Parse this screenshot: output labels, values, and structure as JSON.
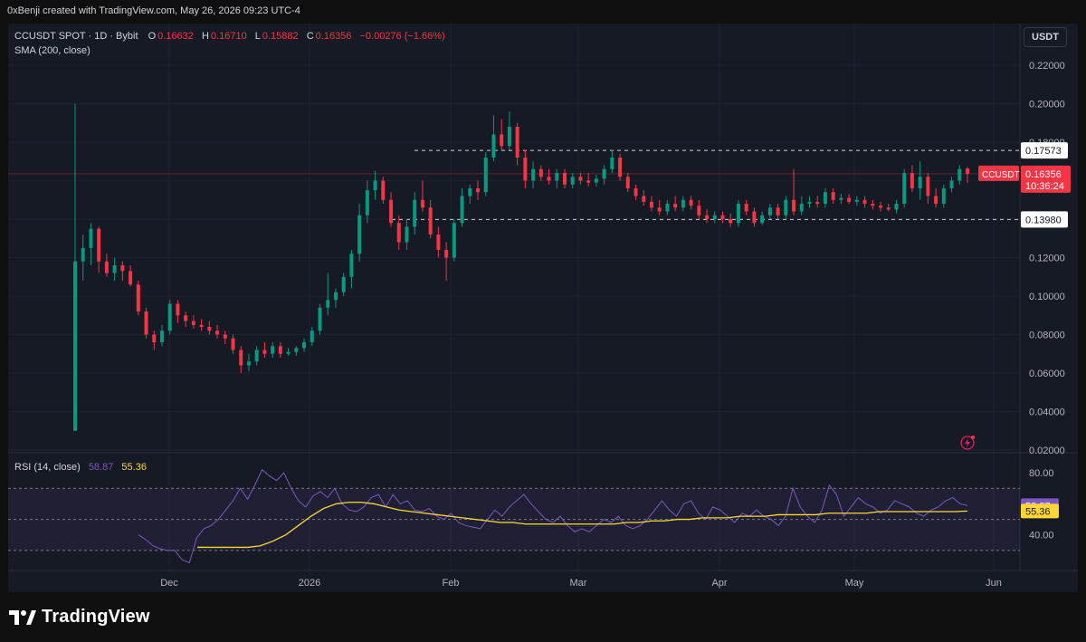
{
  "header": {
    "credit": "0xBenji created with TradingView.com, May 26, 2026 09:23 UTC-4"
  },
  "legend": {
    "symbol": "CCUSDT SPOT · 1D · Bybit",
    "o_label": "O",
    "o": "0.16632",
    "h_label": "H",
    "h": "0.16710",
    "l_label": "L",
    "l": "0.15882",
    "c_label": "C",
    "c": "0.16356",
    "change": "−0.00276 (−1.66%)",
    "sma": "SMA (200, close)"
  },
  "currency_button": "USDT",
  "price_axis": {
    "ticks": [
      "0.22000",
      "0.20000",
      "0.18000",
      "0.16000",
      "0.14000",
      "0.12000",
      "0.10000",
      "0.08000",
      "0.06000",
      "0.04000",
      "0.02000"
    ]
  },
  "levels": {
    "resistance": "0.17573",
    "support": "0.13980"
  },
  "last_price": {
    "symbol": "CCUSDT",
    "price": "0.16356",
    "countdown": "10:36:24"
  },
  "rsi": {
    "label": "RSI (14, close)",
    "value": "58.87",
    "ma_value": "55.36",
    "ticks": [
      "80.00",
      "40.00"
    ]
  },
  "time_axis": [
    "Dec",
    "2026",
    "Feb",
    "Mar",
    "Apr",
    "May",
    "Jun"
  ],
  "footer": {
    "brand": "TradingView"
  },
  "colors": {
    "up": "#089981",
    "down": "#f23645",
    "rsi": "#7e57c2",
    "rsi_ma": "#fdd835",
    "bg": "#161a25"
  },
  "chart_data": {
    "type": "candlestick",
    "title": "CCUSDT SPOT · 1D · Bybit",
    "ylim": [
      0.02,
      0.22
    ],
    "x_labels": [
      "Dec",
      "2026",
      "Feb",
      "Mar",
      "Apr",
      "May",
      "Jun"
    ],
    "ohlc": [
      {
        "o": 0.03,
        "h": 0.2,
        "l": 0.03,
        "c": 0.118
      },
      {
        "o": 0.118,
        "h": 0.132,
        "l": 0.108,
        "c": 0.125
      },
      {
        "o": 0.125,
        "h": 0.138,
        "l": 0.116,
        "c": 0.135
      },
      {
        "o": 0.135,
        "h": 0.136,
        "l": 0.112,
        "c": 0.118
      },
      {
        "o": 0.118,
        "h": 0.122,
        "l": 0.11,
        "c": 0.112
      },
      {
        "o": 0.112,
        "h": 0.12,
        "l": 0.108,
        "c": 0.116
      },
      {
        "o": 0.116,
        "h": 0.118,
        "l": 0.108,
        "c": 0.113
      },
      {
        "o": 0.113,
        "h": 0.116,
        "l": 0.105,
        "c": 0.106
      },
      {
        "o": 0.106,
        "h": 0.108,
        "l": 0.09,
        "c": 0.092
      },
      {
        "o": 0.092,
        "h": 0.094,
        "l": 0.078,
        "c": 0.08
      },
      {
        "o": 0.08,
        "h": 0.082,
        "l": 0.072,
        "c": 0.076
      },
      {
        "o": 0.076,
        "h": 0.085,
        "l": 0.074,
        "c": 0.082
      },
      {
        "o": 0.082,
        "h": 0.098,
        "l": 0.08,
        "c": 0.096
      },
      {
        "o": 0.096,
        "h": 0.098,
        "l": 0.086,
        "c": 0.09
      },
      {
        "o": 0.09,
        "h": 0.092,
        "l": 0.084,
        "c": 0.087
      },
      {
        "o": 0.087,
        "h": 0.09,
        "l": 0.083,
        "c": 0.085
      },
      {
        "o": 0.085,
        "h": 0.088,
        "l": 0.082,
        "c": 0.084
      },
      {
        "o": 0.084,
        "h": 0.087,
        "l": 0.08,
        "c": 0.082
      },
      {
        "o": 0.082,
        "h": 0.085,
        "l": 0.078,
        "c": 0.08
      },
      {
        "o": 0.08,
        "h": 0.082,
        "l": 0.075,
        "c": 0.078
      },
      {
        "o": 0.078,
        "h": 0.08,
        "l": 0.07,
        "c": 0.072
      },
      {
        "o": 0.072,
        "h": 0.074,
        "l": 0.06,
        "c": 0.064
      },
      {
        "o": 0.064,
        "h": 0.07,
        "l": 0.061,
        "c": 0.066
      },
      {
        "o": 0.066,
        "h": 0.074,
        "l": 0.064,
        "c": 0.072
      },
      {
        "o": 0.072,
        "h": 0.076,
        "l": 0.068,
        "c": 0.07
      },
      {
        "o": 0.07,
        "h": 0.076,
        "l": 0.068,
        "c": 0.074
      },
      {
        "o": 0.074,
        "h": 0.076,
        "l": 0.068,
        "c": 0.07
      },
      {
        "o": 0.07,
        "h": 0.073,
        "l": 0.069,
        "c": 0.071
      },
      {
        "o": 0.071,
        "h": 0.074,
        "l": 0.069,
        "c": 0.073
      },
      {
        "o": 0.073,
        "h": 0.078,
        "l": 0.071,
        "c": 0.076
      },
      {
        "o": 0.076,
        "h": 0.084,
        "l": 0.074,
        "c": 0.082
      },
      {
        "o": 0.082,
        "h": 0.096,
        "l": 0.08,
        "c": 0.094
      },
      {
        "o": 0.094,
        "h": 0.112,
        "l": 0.09,
        "c": 0.098
      },
      {
        "o": 0.098,
        "h": 0.104,
        "l": 0.094,
        "c": 0.102
      },
      {
        "o": 0.102,
        "h": 0.112,
        "l": 0.1,
        "c": 0.11
      },
      {
        "o": 0.11,
        "h": 0.124,
        "l": 0.104,
        "c": 0.122
      },
      {
        "o": 0.122,
        "h": 0.148,
        "l": 0.118,
        "c": 0.142
      },
      {
        "o": 0.142,
        "h": 0.16,
        "l": 0.138,
        "c": 0.155
      },
      {
        "o": 0.155,
        "h": 0.165,
        "l": 0.15,
        "c": 0.16
      },
      {
        "o": 0.16,
        "h": 0.162,
        "l": 0.148,
        "c": 0.15
      },
      {
        "o": 0.15,
        "h": 0.154,
        "l": 0.136,
        "c": 0.138
      },
      {
        "o": 0.138,
        "h": 0.142,
        "l": 0.124,
        "c": 0.128
      },
      {
        "o": 0.128,
        "h": 0.14,
        "l": 0.124,
        "c": 0.136
      },
      {
        "o": 0.136,
        "h": 0.154,
        "l": 0.132,
        "c": 0.15
      },
      {
        "o": 0.15,
        "h": 0.16,
        "l": 0.144,
        "c": 0.146
      },
      {
        "o": 0.146,
        "h": 0.15,
        "l": 0.13,
        "c": 0.132
      },
      {
        "o": 0.132,
        "h": 0.136,
        "l": 0.12,
        "c": 0.124
      },
      {
        "o": 0.124,
        "h": 0.128,
        "l": 0.108,
        "c": 0.12
      },
      {
        "o": 0.12,
        "h": 0.14,
        "l": 0.118,
        "c": 0.138
      },
      {
        "o": 0.138,
        "h": 0.156,
        "l": 0.136,
        "c": 0.152
      },
      {
        "o": 0.152,
        "h": 0.158,
        "l": 0.148,
        "c": 0.156
      },
      {
        "o": 0.156,
        "h": 0.16,
        "l": 0.15,
        "c": 0.154
      },
      {
        "o": 0.154,
        "h": 0.175,
        "l": 0.152,
        "c": 0.172
      },
      {
        "o": 0.172,
        "h": 0.194,
        "l": 0.17,
        "c": 0.184
      },
      {
        "o": 0.184,
        "h": 0.192,
        "l": 0.176,
        "c": 0.178
      },
      {
        "o": 0.178,
        "h": 0.196,
        "l": 0.176,
        "c": 0.188
      },
      {
        "o": 0.188,
        "h": 0.19,
        "l": 0.168,
        "c": 0.172
      },
      {
        "o": 0.172,
        "h": 0.176,
        "l": 0.156,
        "c": 0.16
      },
      {
        "o": 0.16,
        "h": 0.17,
        "l": 0.156,
        "c": 0.166
      },
      {
        "o": 0.166,
        "h": 0.168,
        "l": 0.16,
        "c": 0.162
      },
      {
        "o": 0.162,
        "h": 0.166,
        "l": 0.158,
        "c": 0.16
      },
      {
        "o": 0.16,
        "h": 0.166,
        "l": 0.156,
        "c": 0.164
      },
      {
        "o": 0.164,
        "h": 0.166,
        "l": 0.156,
        "c": 0.158
      },
      {
        "o": 0.158,
        "h": 0.164,
        "l": 0.156,
        "c": 0.162
      },
      {
        "o": 0.162,
        "h": 0.164,
        "l": 0.158,
        "c": 0.16
      },
      {
        "o": 0.16,
        "h": 0.164,
        "l": 0.157,
        "c": 0.159
      },
      {
        "o": 0.159,
        "h": 0.163,
        "l": 0.157,
        "c": 0.161
      },
      {
        "o": 0.161,
        "h": 0.168,
        "l": 0.158,
        "c": 0.166
      },
      {
        "o": 0.166,
        "h": 0.176,
        "l": 0.164,
        "c": 0.172
      },
      {
        "o": 0.172,
        "h": 0.174,
        "l": 0.16,
        "c": 0.162
      },
      {
        "o": 0.162,
        "h": 0.164,
        "l": 0.154,
        "c": 0.156
      },
      {
        "o": 0.156,
        "h": 0.158,
        "l": 0.15,
        "c": 0.152
      },
      {
        "o": 0.152,
        "h": 0.155,
        "l": 0.147,
        "c": 0.149
      },
      {
        "o": 0.149,
        "h": 0.152,
        "l": 0.144,
        "c": 0.146
      },
      {
        "o": 0.146,
        "h": 0.15,
        "l": 0.142,
        "c": 0.144
      },
      {
        "o": 0.144,
        "h": 0.15,
        "l": 0.142,
        "c": 0.148
      },
      {
        "o": 0.148,
        "h": 0.152,
        "l": 0.144,
        "c": 0.146
      },
      {
        "o": 0.146,
        "h": 0.152,
        "l": 0.144,
        "c": 0.15
      },
      {
        "o": 0.15,
        "h": 0.152,
        "l": 0.145,
        "c": 0.147
      },
      {
        "o": 0.147,
        "h": 0.15,
        "l": 0.14,
        "c": 0.142
      },
      {
        "o": 0.142,
        "h": 0.145,
        "l": 0.138,
        "c": 0.14
      },
      {
        "o": 0.14,
        "h": 0.144,
        "l": 0.138,
        "c": 0.142
      },
      {
        "o": 0.142,
        "h": 0.144,
        "l": 0.138,
        "c": 0.14
      },
      {
        "o": 0.14,
        "h": 0.143,
        "l": 0.136,
        "c": 0.138
      },
      {
        "o": 0.138,
        "h": 0.15,
        "l": 0.136,
        "c": 0.148
      },
      {
        "o": 0.148,
        "h": 0.15,
        "l": 0.142,
        "c": 0.144
      },
      {
        "o": 0.144,
        "h": 0.146,
        "l": 0.136,
        "c": 0.138
      },
      {
        "o": 0.138,
        "h": 0.144,
        "l": 0.137,
        "c": 0.142
      },
      {
        "o": 0.142,
        "h": 0.148,
        "l": 0.14,
        "c": 0.146
      },
      {
        "o": 0.146,
        "h": 0.148,
        "l": 0.14,
        "c": 0.142
      },
      {
        "o": 0.142,
        "h": 0.152,
        "l": 0.14,
        "c": 0.15
      },
      {
        "o": 0.15,
        "h": 0.166,
        "l": 0.142,
        "c": 0.144
      },
      {
        "o": 0.144,
        "h": 0.152,
        "l": 0.142,
        "c": 0.148
      },
      {
        "o": 0.148,
        "h": 0.152,
        "l": 0.146,
        "c": 0.149
      },
      {
        "o": 0.149,
        "h": 0.152,
        "l": 0.146,
        "c": 0.148
      },
      {
        "o": 0.148,
        "h": 0.156,
        "l": 0.146,
        "c": 0.154
      },
      {
        "o": 0.154,
        "h": 0.156,
        "l": 0.148,
        "c": 0.15
      },
      {
        "o": 0.15,
        "h": 0.153,
        "l": 0.148,
        "c": 0.151
      },
      {
        "o": 0.151,
        "h": 0.153,
        "l": 0.148,
        "c": 0.149
      },
      {
        "o": 0.149,
        "h": 0.152,
        "l": 0.147,
        "c": 0.15
      },
      {
        "o": 0.15,
        "h": 0.152,
        "l": 0.146,
        "c": 0.148
      },
      {
        "o": 0.148,
        "h": 0.15,
        "l": 0.145,
        "c": 0.147
      },
      {
        "o": 0.147,
        "h": 0.149,
        "l": 0.144,
        "c": 0.146
      },
      {
        "o": 0.146,
        "h": 0.148,
        "l": 0.144,
        "c": 0.145
      },
      {
        "o": 0.145,
        "h": 0.15,
        "l": 0.143,
        "c": 0.148
      },
      {
        "o": 0.148,
        "h": 0.166,
        "l": 0.146,
        "c": 0.164
      },
      {
        "o": 0.164,
        "h": 0.168,
        "l": 0.154,
        "c": 0.156
      },
      {
        "o": 0.156,
        "h": 0.17,
        "l": 0.15,
        "c": 0.162
      },
      {
        "o": 0.162,
        "h": 0.164,
        "l": 0.148,
        "c": 0.152
      },
      {
        "o": 0.152,
        "h": 0.156,
        "l": 0.146,
        "c": 0.148
      },
      {
        "o": 0.148,
        "h": 0.158,
        "l": 0.146,
        "c": 0.156
      },
      {
        "o": 0.156,
        "h": 0.162,
        "l": 0.154,
        "c": 0.16
      },
      {
        "o": 0.16,
        "h": 0.168,
        "l": 0.158,
        "c": 0.166
      },
      {
        "o": 0.16632,
        "h": 0.1671,
        "l": 0.15882,
        "c": 0.16356
      }
    ],
    "indicators": [
      {
        "name": "SMA (200, close)"
      },
      {
        "name": "RSI (14, close)",
        "last": 58.87,
        "ma_last": 55.36,
        "ylim": [
          20,
          90
        ],
        "rsi": [
          40,
          37,
          33,
          31,
          30,
          30,
          24,
          22,
          38,
          44,
          46,
          50,
          56,
          62,
          70,
          63,
          72,
          82,
          78,
          75,
          80,
          70,
          62,
          58,
          65,
          68,
          64,
          70,
          60,
          56,
          55,
          58,
          64,
          66,
          58,
          66,
          60,
          62,
          56,
          55,
          57,
          52,
          50,
          54,
          48,
          46,
          45,
          44,
          50,
          56,
          52,
          58,
          62,
          66,
          60,
          55,
          50,
          48,
          52,
          46,
          42,
          44,
          42,
          46,
          50,
          48,
          52,
          46,
          44,
          46,
          50,
          56,
          62,
          56,
          52,
          60,
          62,
          54,
          50,
          58,
          56,
          52,
          48,
          54,
          52,
          56,
          52,
          50,
          46,
          52,
          70,
          58,
          52,
          48,
          56,
          72,
          66,
          52,
          58,
          64,
          60,
          58,
          54,
          56,
          62,
          60,
          58,
          54,
          52,
          56,
          58,
          62,
          64,
          60,
          58.87
        ],
        "rsi_ma": [
          32,
          32,
          32,
          32,
          32,
          33,
          36,
          40,
          46,
          52,
          57,
          60,
          61,
          61,
          60,
          58,
          56,
          55,
          54,
          53,
          52,
          51,
          50,
          49,
          48,
          48,
          47,
          47,
          47,
          47,
          47,
          47,
          47,
          47,
          48,
          48,
          49,
          49,
          50,
          50,
          51,
          51,
          51,
          52,
          52,
          52,
          53,
          53,
          53,
          53,
          54,
          54,
          54,
          54,
          55,
          55,
          55,
          55,
          55,
          55,
          55,
          55.36
        ]
      }
    ]
  }
}
